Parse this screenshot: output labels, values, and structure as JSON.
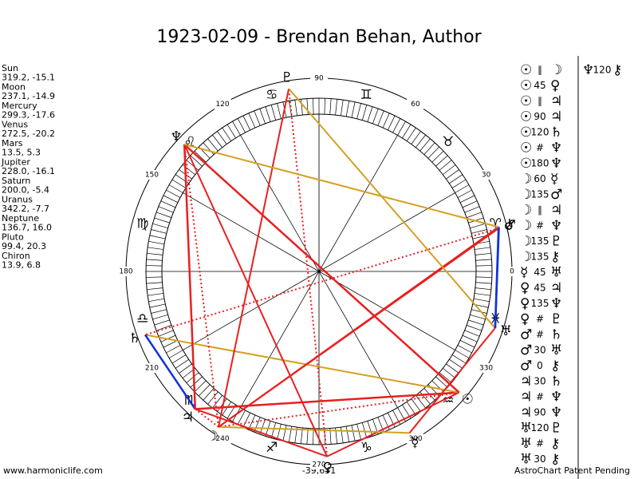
{
  "title": "1923-02-09 - Brendan Behan, Author",
  "planets": [
    {
      "glyph": "☉",
      "name": "Sun",
      "coords": "319.2, -15.1"
    },
    {
      "glyph": "☽",
      "name": "Moon",
      "coords": "237.1, -14.9"
    },
    {
      "glyph": "☿",
      "name": "Mercury",
      "coords": "299.3, -17.6"
    },
    {
      "glyph": "♀",
      "name": "Venus",
      "coords": "272.5, -20.2"
    },
    {
      "glyph": "♂",
      "name": "Mars",
      "coords": "13.5, 5.3"
    },
    {
      "glyph": "♃",
      "name": "Jupiter",
      "coords": "228.0, -16.1"
    },
    {
      "glyph": "♄",
      "name": "Saturn",
      "coords": "200.0, -5.4"
    },
    {
      "glyph": "♅",
      "name": "Uranus",
      "coords": "342.2, -7.7"
    },
    {
      "glyph": "♆",
      "name": "Neptune",
      "coords": "136.7, 16.0"
    },
    {
      "glyph": "♇",
      "name": "Pluto",
      "coords": "99.4, 20.3"
    },
    {
      "glyph": "⚷",
      "name": "Chiron",
      "coords": "13.9, 6.8"
    }
  ],
  "wheel": {
    "degree_labels": [
      0,
      30,
      60,
      90,
      120,
      150,
      180,
      210,
      240,
      270,
      300,
      330
    ],
    "signs": [
      "♈",
      "♉",
      "♊",
      "♋",
      "♌",
      "♍",
      "♎",
      "♏",
      "♐",
      "♑",
      "♒",
      "♓"
    ]
  },
  "aspects": [
    {
      "from": "☉",
      "aspect": "∥",
      "to": "☽"
    },
    {
      "from": "☉",
      "aspect": "45",
      "to": "♀"
    },
    {
      "from": "☉",
      "aspect": "∥",
      "to": "♃"
    },
    {
      "from": "☉",
      "aspect": "90",
      "to": "♃"
    },
    {
      "from": "☉",
      "aspect": "120",
      "to": "♄"
    },
    {
      "from": "☉",
      "aspect": "#",
      "to": "♆"
    },
    {
      "from": "☉",
      "aspect": "180",
      "to": "♆"
    },
    {
      "from": "☽",
      "aspect": "60",
      "to": "☿"
    },
    {
      "from": "☽",
      "aspect": "135",
      "to": "♂"
    },
    {
      "from": "☽",
      "aspect": "∥",
      "to": "♃"
    },
    {
      "from": "☽",
      "aspect": "#",
      "to": "♆"
    },
    {
      "from": "☽",
      "aspect": "135",
      "to": "♇"
    },
    {
      "from": "☽",
      "aspect": "135",
      "to": "⚷"
    },
    {
      "from": "☿",
      "aspect": "45",
      "to": "♅"
    },
    {
      "from": "♀",
      "aspect": "45",
      "to": "♃"
    },
    {
      "from": "♀",
      "aspect": "135",
      "to": "♆"
    },
    {
      "from": "♀",
      "aspect": "#",
      "to": "♇"
    },
    {
      "from": "♂",
      "aspect": "#",
      "to": "♄"
    },
    {
      "from": "♂",
      "aspect": "30",
      "to": "♅"
    },
    {
      "from": "♂",
      "aspect": "0",
      "to": "⚷"
    },
    {
      "from": "♃",
      "aspect": "30",
      "to": "♄"
    },
    {
      "from": "♃",
      "aspect": "#",
      "to": "♆"
    },
    {
      "from": "♃",
      "aspect": "90",
      "to": "♆"
    },
    {
      "from": "♅",
      "aspect": "120",
      "to": "♇"
    },
    {
      "from": "♅",
      "aspect": "#",
      "to": "⚷"
    },
    {
      "from": "♅",
      "aspect": "30",
      "to": "⚷"
    },
    {
      "from": "♆",
      "aspect": "120",
      "to": "⚷"
    }
  ],
  "footer": {
    "left": "www.harmoniclife.com",
    "center": "-39,651",
    "right": "AstroChart Patent Pending"
  }
}
